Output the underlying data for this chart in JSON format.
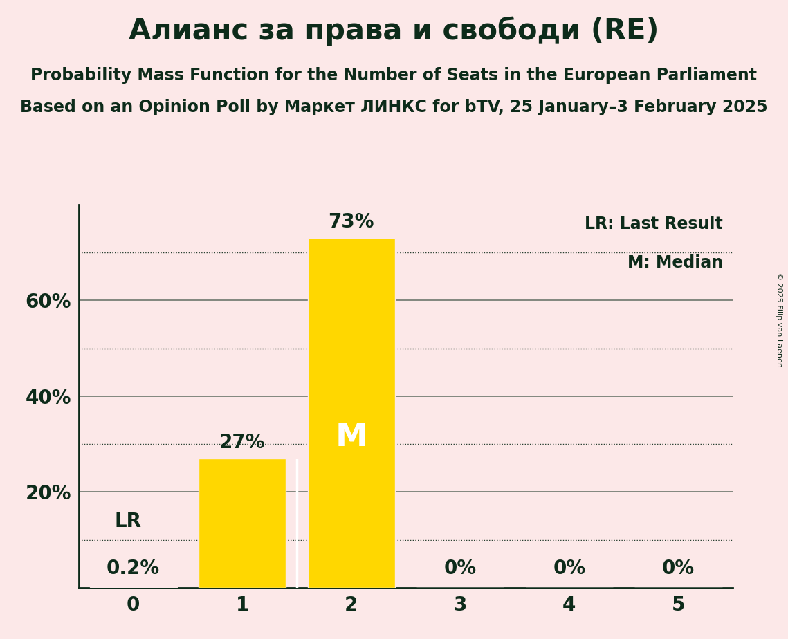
{
  "title": "Алианс за права и свободи (RE)",
  "subtitle1": "Probability Mass Function for the Number of Seats in the European Parliament",
  "subtitle2": "Based on an Opinion Poll by Маркет ЛИНКС for bTV, 25 January–3 February 2025",
  "categories": [
    0,
    1,
    2,
    3,
    4,
    5
  ],
  "values": [
    0.002,
    0.27,
    0.73,
    0.0,
    0.0,
    0.0
  ],
  "bar_color": "#FFD700",
  "background_color": "#fce8e8",
  "dark_color": "#0d2b1a",
  "value_labels": [
    "0.2%",
    "27%",
    "73%",
    "0%",
    "0%",
    "0%"
  ],
  "ytick_positions": [
    0.2,
    0.4,
    0.6
  ],
  "ytick_labels": [
    "20%",
    "40%",
    "60%"
  ],
  "dotted_lines": [
    0.1,
    0.3,
    0.5,
    0.7
  ],
  "lr_value": 0.1,
  "median_seat": 2,
  "legend_lr": "LR: Last Result",
  "legend_m": "M: Median",
  "copyright": "© 2025 Filip van Laenen",
  "ylim": [
    0,
    0.8
  ],
  "title_fontsize": 30,
  "subtitle_fontsize": 17,
  "axis_fontsize": 20,
  "label_fontsize": 20,
  "legend_fontsize": 17,
  "median_fontsize": 34
}
